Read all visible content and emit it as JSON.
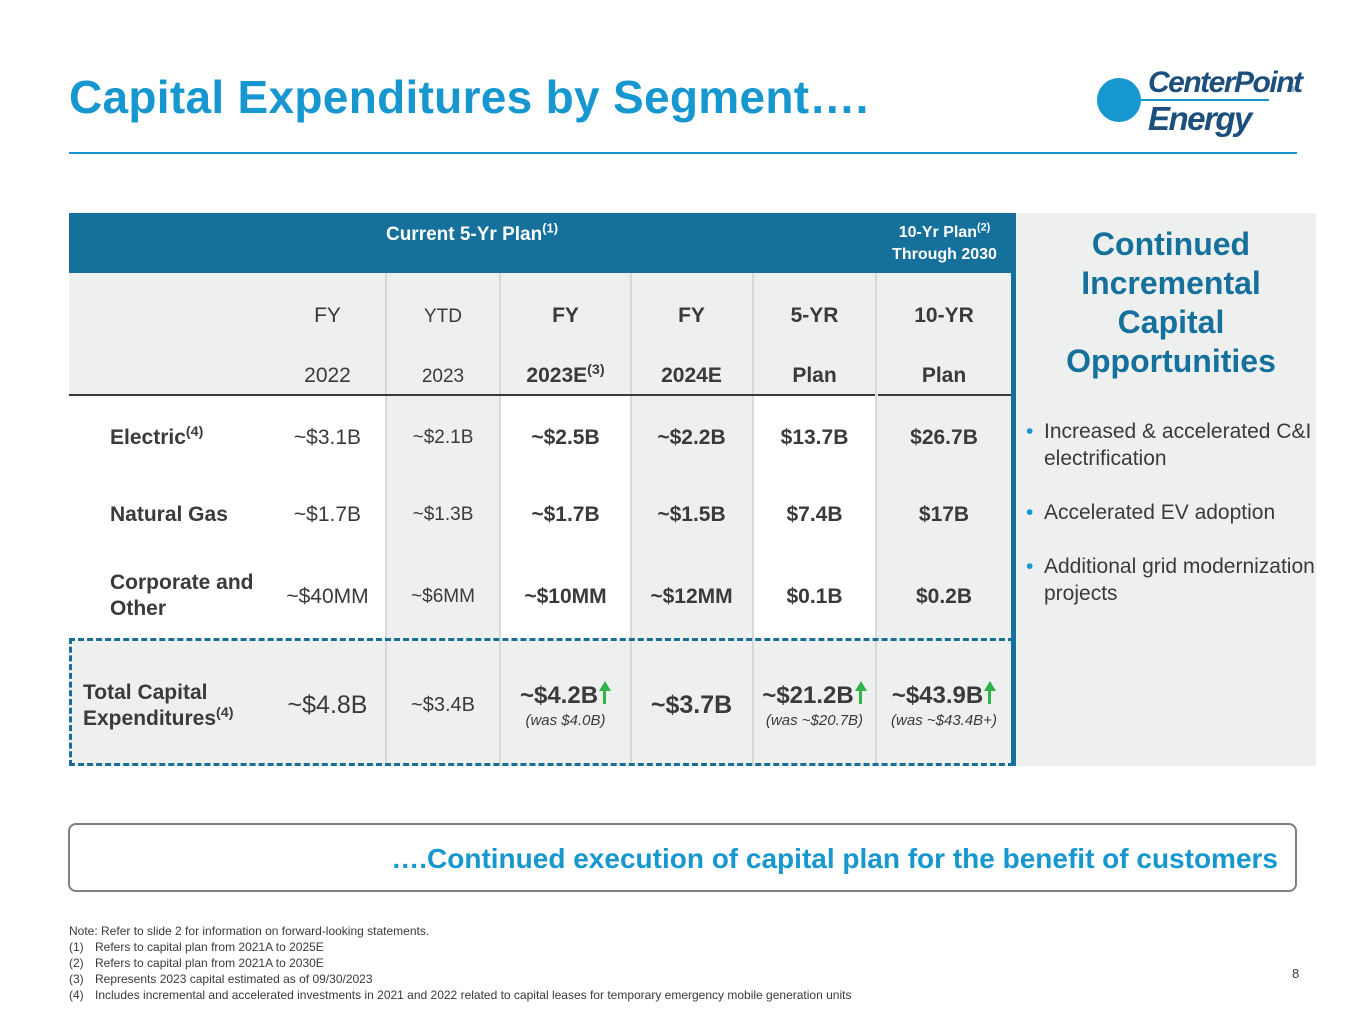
{
  "title": "Capital Expenditures by Segment….",
  "logo": {
    "line1": "CenterPoint",
    "line2": "Energy",
    "reg": "®"
  },
  "table": {
    "header_plan5": "Current 5-Yr Plan",
    "header_plan5_sup": "(1)",
    "header_plan10_line1": "10-Yr Plan",
    "header_plan10_sup": "(2)",
    "header_plan10_line2": "Through 2030",
    "columns": [
      {
        "top": "FY",
        "bottom": "2022"
      },
      {
        "top": "YTD",
        "bottom": "2023"
      },
      {
        "top": "FY",
        "bottom": "2023E",
        "sup": "(3)"
      },
      {
        "top": "FY",
        "bottom": "2024E"
      },
      {
        "top": "5-YR",
        "bottom": "Plan"
      },
      {
        "top": "10-YR",
        "bottom": "Plan"
      }
    ],
    "rows": [
      {
        "label": "Electric",
        "sup": "(4)",
        "values": [
          "~$3.1B",
          "~$2.1B",
          "~$2.5B",
          "~$2.2B",
          "$13.7B",
          "$26.7B"
        ]
      },
      {
        "label": "Natural Gas",
        "values": [
          "~$1.7B",
          "~$1.3B",
          "~$1.7B",
          "~$1.5B",
          "$7.4B",
          "$17B"
        ]
      },
      {
        "label_line1": "Corporate and",
        "label_line2": "Other",
        "values": [
          "~$40MM",
          "~$6MM",
          "~$10MM",
          "~$12MM",
          "$0.1B",
          "$0.2B"
        ]
      }
    ],
    "total": {
      "label_line1": "Total Capital",
      "label_line2": "Expenditures",
      "sup": "(4)",
      "values": [
        "~$4.8B",
        "~$3.4B",
        "~$4.2B",
        "~$3.7B",
        "~$21.2B",
        "~$43.9B"
      ],
      "was": {
        "c2": "(was $4.0B)",
        "c4": "(was ~$20.7B)",
        "c5": "(was ~$43.4B+)"
      }
    }
  },
  "panel": {
    "title_lines": [
      "Continued",
      "Incremental",
      "Capital",
      "Opportunities"
    ],
    "bullets": [
      "Increased & accelerated C&I electrification",
      "Accelerated EV adoption",
      "Additional grid modernization projects"
    ]
  },
  "callout": "….Continued execution of capital plan for the benefit of customers",
  "notes": {
    "intro": "Note: Refer to slide 2 for information on forward-looking statements.",
    "items": [
      {
        "num": "(1)",
        "text": "Refers to capital plan from 2021A to 2025E"
      },
      {
        "num": "(2)",
        "text": "Refers to capital plan from 2021A to 2030E"
      },
      {
        "num": "(3)",
        "text": "Represents 2023 capital estimated as of 09/30/2023"
      },
      {
        "num": "(4)",
        "text": "Includes incremental and accelerated investments in 2021 and 2022 related to capital leases for temporary emergency mobile generation units"
      }
    ]
  },
  "page_number": "8",
  "colors": {
    "title_blue": "#1797d0",
    "header_blue": "#15709b",
    "arrow_green": "#2db34a"
  }
}
